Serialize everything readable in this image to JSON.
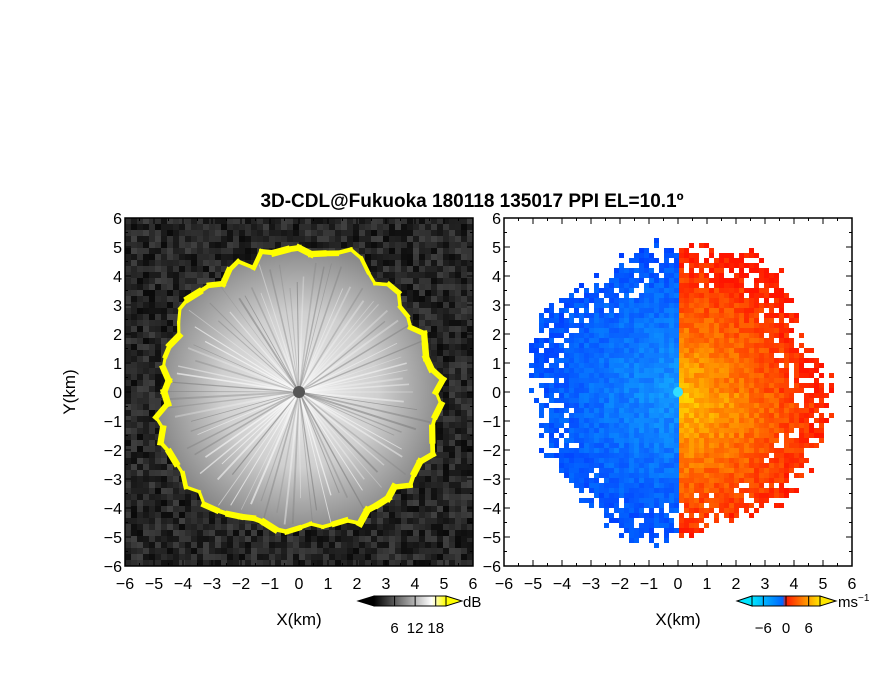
{
  "chart_data": {
    "type": "heatmap",
    "title": "3D-CDL@Fukuoka 180118 135017 PPI EL=10.1º",
    "panels": [
      {
        "name": "snr",
        "xlabel": "X(km)",
        "ylabel": "Y(km)",
        "xlim": [
          -6,
          6
        ],
        "ylim": [
          -6,
          6
        ],
        "xticks": [
          "−6",
          "−5",
          "−4",
          "−3",
          "−2",
          "−1",
          "0",
          "1",
          "2",
          "3",
          "4",
          "5",
          "6"
        ],
        "yticks": [
          "−6",
          "−5",
          "−4",
          "−3",
          "−2",
          "−1",
          "0",
          "1",
          "2",
          "3",
          "4",
          "5",
          "6"
        ],
        "radar_range_km": 4.8,
        "colorbar": {
          "unit": "dB",
          "ticks": [
            "6",
            "12",
            "18"
          ],
          "tick_values": [
            6,
            12,
            18
          ],
          "range": [
            0,
            21
          ],
          "colors": [
            "#000000",
            "#ffffff",
            "#ffff00"
          ]
        }
      },
      {
        "name": "doppler-velocity",
        "xlabel": "X(km)",
        "ylabel": "",
        "xlim": [
          -6,
          6
        ],
        "ylim": [
          -6,
          6
        ],
        "xticks": [
          "−6",
          "−5",
          "−4",
          "−3",
          "−2",
          "−1",
          "0",
          "1",
          "2",
          "3",
          "4",
          "5",
          "6"
        ],
        "yticks": [
          "−6",
          "−5",
          "−4",
          "−3",
          "−2",
          "−1",
          "0",
          "1",
          "2",
          "3",
          "4",
          "5",
          "6"
        ],
        "radar_range_km": 5.0,
        "colorbar": {
          "unit": "ms",
          "unit_exp": "−1",
          "ticks": [
            "−6",
            "0",
            "6"
          ],
          "tick_values": [
            -6,
            0,
            6
          ],
          "range": [
            -9,
            9
          ],
          "colors": [
            "#00e5ff",
            "#0066ff",
            "#ff1a00",
            "#ffe600"
          ]
        }
      }
    ]
  }
}
